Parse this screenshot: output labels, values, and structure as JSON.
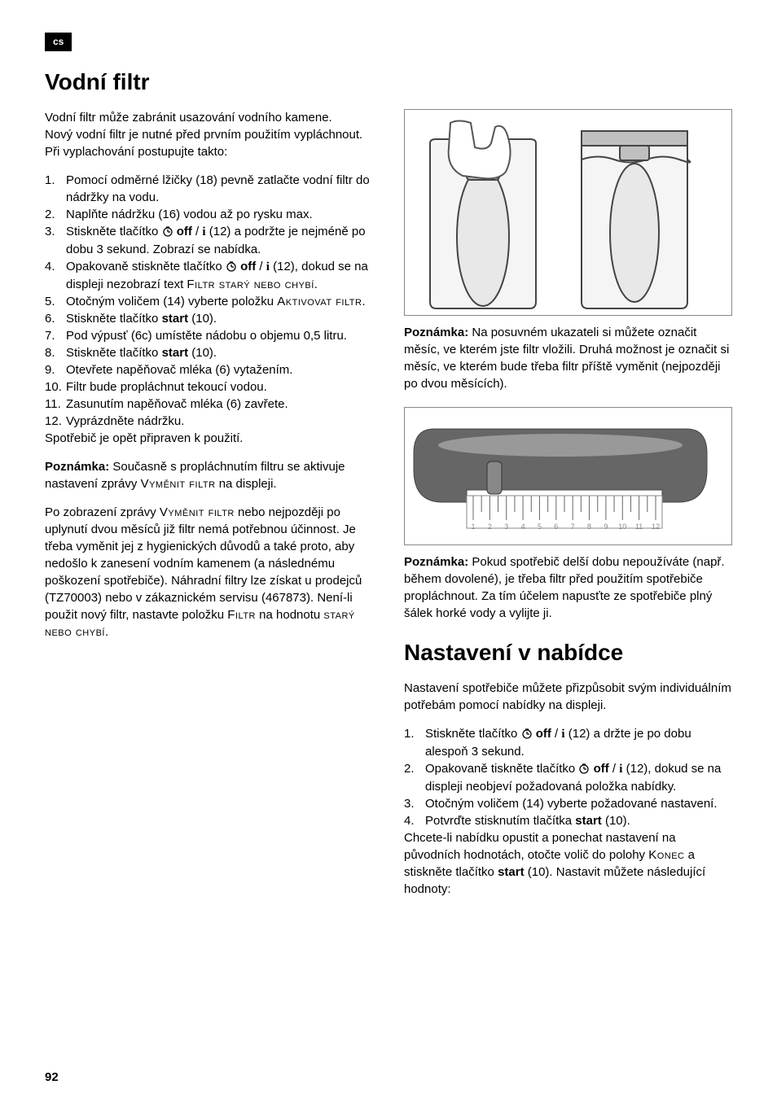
{
  "lang_tag": "cs",
  "h1": "Vodní filtr",
  "left": {
    "intro1": "Vodní filtr může zabránit usazování vodního kamene.",
    "intro2": "Nový vodní filtr je nutné před prvním použitím vypláchnout. Při vyplachování postupujte takto:",
    "steps": [
      "Pomocí odměrné lžičky (18) pevně zatlačte vodní filtr do nádržky na vodu.",
      "Naplňte nádržku (16) vodou až po rysku max.",
      "Stiskněte tlačítko ⏱ off / ℹ (12) a podržte je nejméně po dobu 3 sekund. Zobrazí se nabídka.",
      "Opakovaně stiskněte tlačítko ⏱ off / ℹ (12), dokud se na displeji nezobrazí text Filtr starý nebo chybí.",
      "Otočným voličem (14) vyberte položku Aktivovat filtr.",
      "Stiskněte tlačítko start (10).",
      "Pod výpusť (6c) umístěte nádobu o objemu 0,5 litru.",
      "Stiskněte tlačítko start (10).",
      "Otevřete napěňovač mléka (6) vytažením.",
      "Filtr bude propláchnut tekoucí vodou.",
      "Zasunutím napěňovač mléka (6) zavřete.",
      "Vyprázdněte nádržku."
    ],
    "after_steps": "Spotřebič je opět připraven k použití.",
    "note1_label": "Poznámka:",
    "note1_body": " Současně s propláchnutím filtru se aktivuje nastavení zprávy Vyměnit filtr na displeji.",
    "para2": "Po zobrazení zprávy Vyměnit filtr nebo nejpozději po uplynutí dvou měsíců již filtr nemá potřebnou účinnost. Je třeba vyměnit jej z hygienických důvodů a také proto, aby nedošlo k zanesení vodním kamenem (a následnému poškození spotřebiče). Náhradní filtry lze získat u prodejců (TZ70003) nebo v zákaznickém servisu (467873). Není-li použit nový filtr, nastavte položku Filtr na hodnotu starý nebo chybí."
  },
  "right": {
    "note2_label": "Poznámka:",
    "note2_body": " Na posuvném ukazateli si můžete označit měsíc, ve kterém jste filtr vložili. Druhá možnost je označit si měsíc, ve kterém bude třeba filtr příště vyměnit (nejpozději po dvou měsících).",
    "note3_label": "Poznámka:",
    "note3_body": " Pokud spotřebič delší dobu nepoužíváte (např. během dovolené), je třeba filtr před použitím spotřebiče propláchnout. Za tím účelem napusťte ze spotřebiče plný šálek horké vody a vylijte ji.",
    "h2": "Nastavení v nabídce",
    "intro3": "Nastavení spotřebiče můžete přizpůsobit svým individuálním potřebám pomocí nabídky na displeji.",
    "steps2": [
      "Stiskněte tlačítko ⏱ off / ℹ (12) a držte je po dobu alespoň 3 sekund.",
      "Opakovaně tiskněte tlačítko ⏱ off / ℹ (12), dokud se na displeji neobjeví požadovaná položka nabídky.",
      "Otočným voličem (14) vyberte požadované nastavení.",
      "Potvrďte stisknutím tlačítka start (10)."
    ],
    "para3": "Chcete-li nabídku opustit a ponechat nastavení na původních hodnotách, otočte volič do polohy Konec a stiskněte tlačítko start (10). Nastavit můžete následující hodnoty:"
  },
  "illus_top": {
    "filter_body": "#e8e8e8",
    "filter_cap": "#bfbfbf",
    "filter_stroke": "#444",
    "tank_stroke": "#444",
    "tank_fill": "#f5f5f5",
    "filter_top_stroke": "#555"
  },
  "illus_bottom": {
    "body_fill": "#666",
    "body_light": "#bbb",
    "scale_fill": "#fff",
    "scale_stroke": "#888",
    "tick_stroke": "#666",
    "text_color": "#888"
  },
  "scale_numbers": [
    "1",
    "2",
    "3",
    "4",
    "5",
    "6",
    "7",
    "8",
    "9",
    "10",
    "11",
    "12"
  ],
  "page_number": "92"
}
